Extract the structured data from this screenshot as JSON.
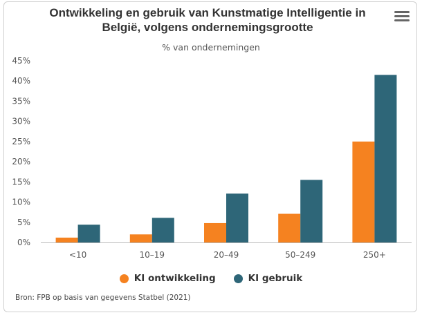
{
  "colors": {
    "series1": "#f58220",
    "series2": "#2e6678"
  },
  "icon": "menu-icon",
  "chart_data": {
    "type": "bar",
    "title": "Ontwikkeling en gebruik van Kunstmatige Intelligentie in België, volgens ondernemingsgrootte",
    "title_line1": "Ontwikkeling en gebruik van Kunstmatige Intelligentie in",
    "title_line2": "België, volgens ondernemingsgrootte",
    "subtitle": "% van ondernemingen",
    "categories": [
      "<10",
      "10–19",
      "20–49",
      "50–249",
      "250+"
    ],
    "series": [
      {
        "name": "KI ontwikkeling",
        "values": [
          1.2,
          2.0,
          4.8,
          7.1,
          25.0
        ]
      },
      {
        "name": "KI gebruik",
        "values": [
          4.4,
          6.1,
          12.1,
          15.5,
          41.5
        ]
      }
    ],
    "ylim": [
      0,
      45
    ],
    "yticks": [
      "0%",
      "5%",
      "10%",
      "15%",
      "20%",
      "25%",
      "30%",
      "35%",
      "40%",
      "45%"
    ],
    "ytick_values": [
      0,
      5,
      10,
      15,
      20,
      25,
      30,
      35,
      40,
      45
    ],
    "grid": false,
    "legend": "bottom",
    "source": "Bron: FPB op basis van gegevens Statbel (2021)"
  }
}
